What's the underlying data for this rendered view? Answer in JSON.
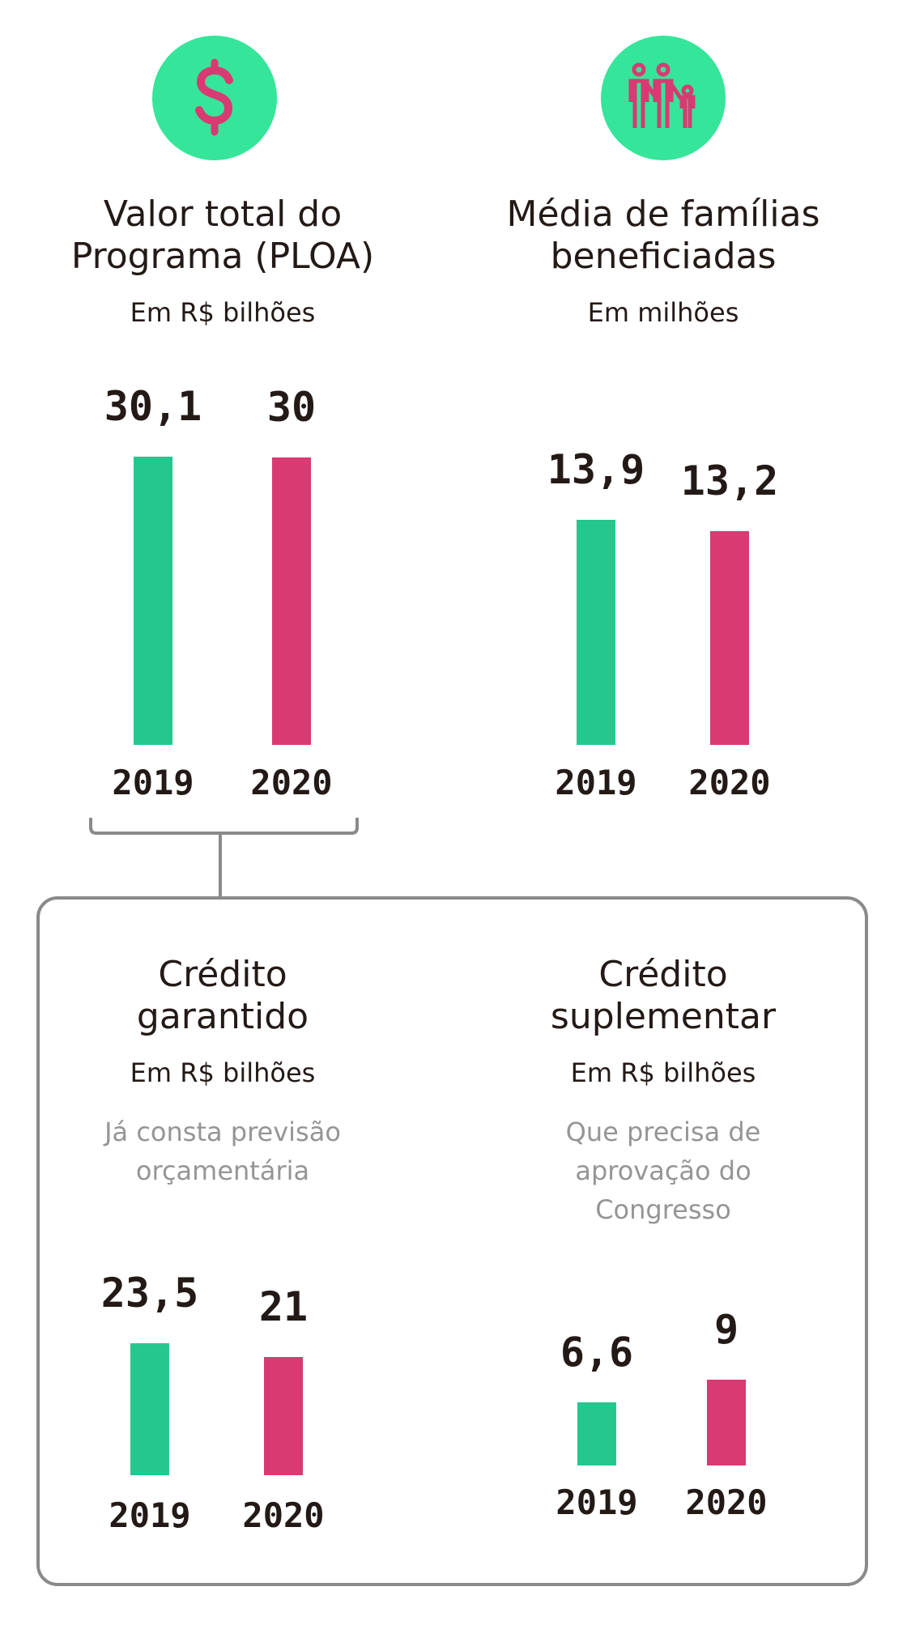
{
  "colors": {
    "circle": "#35e59a",
    "icon": "#d93a72",
    "series_2019": "#26c78f",
    "series_2020": "#d93a72",
    "text": "#231a17",
    "note": "#959595",
    "frame": "#8a8a8a"
  },
  "icons": [
    "dollar-sign-icon",
    "family-icon"
  ],
  "chart_data": [
    {
      "type": "bar",
      "title": "Valor total do Programa (PLOA)",
      "subtitle": "Em R$ bilhões",
      "categories": [
        "2019",
        "2020"
      ],
      "values": [
        30.1,
        30
      ],
      "labels": [
        "30,1",
        "30"
      ]
    },
    {
      "type": "bar",
      "title": "Média de famílias beneficiadas",
      "subtitle": "Em milhões",
      "categories": [
        "2019",
        "2020"
      ],
      "values": [
        13.9,
        13.2
      ],
      "labels": [
        "13,9",
        "13,2"
      ]
    },
    {
      "type": "bar",
      "title": "Crédito garantido",
      "subtitle": "Em R$ bilhões",
      "note": "Já consta previsão orçamentária",
      "categories": [
        "2019",
        "2020"
      ],
      "values": [
        23.5,
        21
      ],
      "labels": [
        "23,5",
        "21"
      ]
    },
    {
      "type": "bar",
      "title": "Crédito suplementar",
      "subtitle": "Em R$ bilhões",
      "note": "Que precisa de aprovação do Congresso",
      "categories": [
        "2019",
        "2020"
      ],
      "values": [
        6.6,
        9
      ],
      "labels": [
        "6,6",
        "9"
      ]
    }
  ],
  "titles": [
    [
      "Valor total do",
      "Programa (PLOA)"
    ],
    [
      "Média de famílias",
      "beneficiadas"
    ],
    [
      "Crédito",
      "garantido"
    ],
    [
      "Crédito",
      "suplementar"
    ]
  ],
  "notes": [
    [
      "Já consta previsão",
      "orçamentária"
    ],
    [
      "Que precisa de",
      "aprovação do",
      "Congresso"
    ]
  ]
}
